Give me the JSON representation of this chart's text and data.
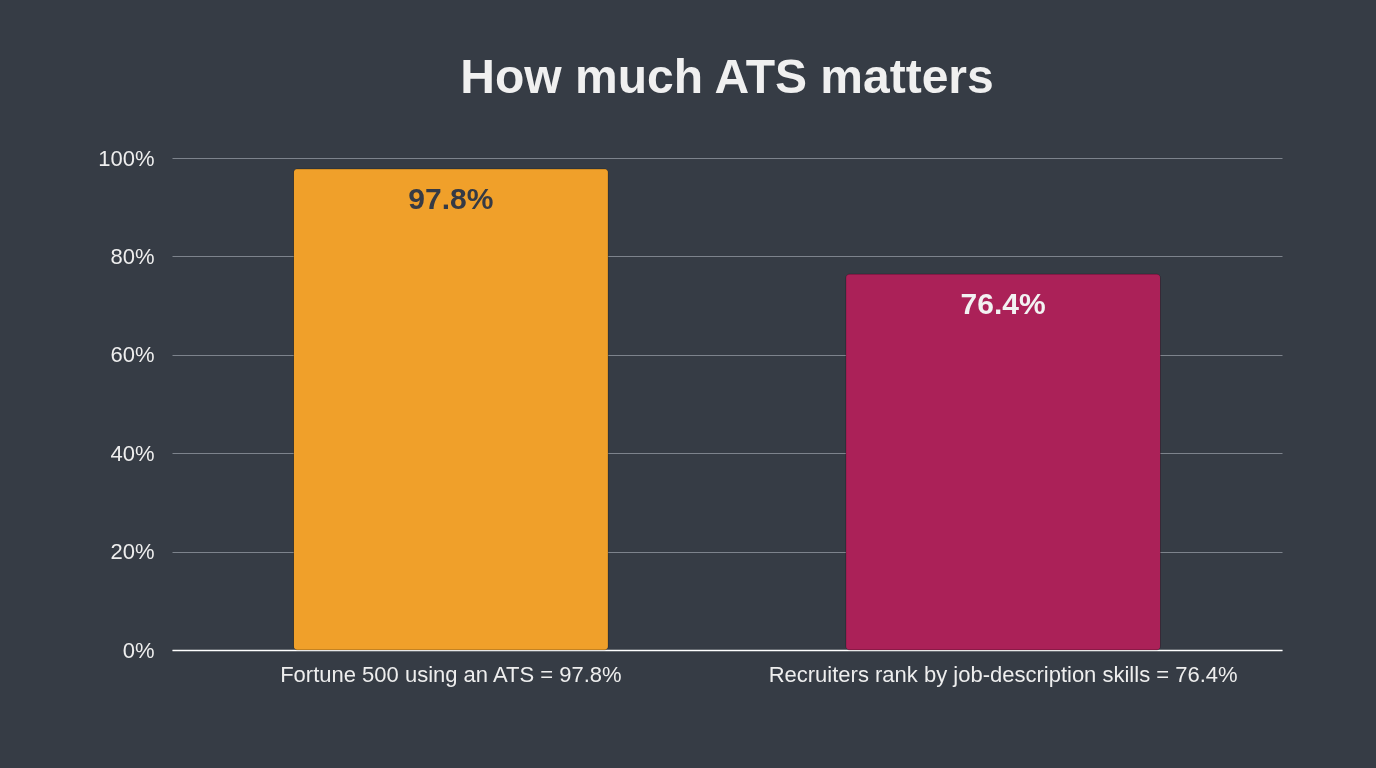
{
  "chart_data": {
    "type": "bar",
    "title": "How much ATS matters",
    "categories": [
      "Fortune 500 using an ATS = 97.8%",
      "Recruiters rank by job-description skills = 76.4%"
    ],
    "values": [
      97.8,
      76.4
    ],
    "colors": [
      "#f0a02a",
      "#ab2158"
    ],
    "value_labels": [
      "97.8%",
      "76.4%"
    ],
    "ylim": [
      0,
      100
    ],
    "yticks": [
      {
        "value": 0,
        "label": "0%"
      },
      {
        "value": 20,
        "label": "20%"
      },
      {
        "value": 40,
        "label": "40%"
      },
      {
        "value": 60,
        "label": "60%"
      },
      {
        "value": 80,
        "label": "80%"
      },
      {
        "value": 100,
        "label": "100%"
      }
    ],
    "grid": "y"
  }
}
